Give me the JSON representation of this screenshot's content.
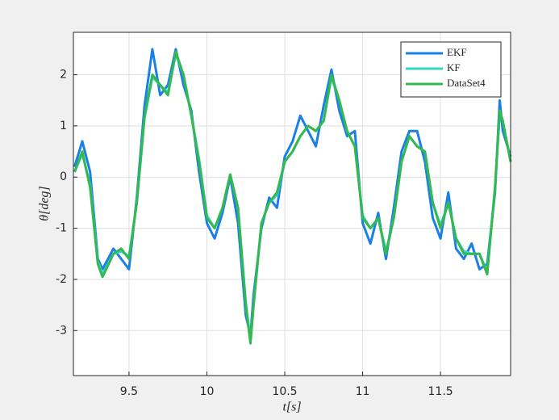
{
  "chart_data": {
    "type": "line",
    "x_label": "t[s]",
    "y_label": "θ[deg]",
    "x": [
      9.15,
      9.2,
      9.25,
      9.3,
      9.33,
      9.4,
      9.45,
      9.5,
      9.55,
      9.6,
      9.65,
      9.7,
      9.75,
      9.8,
      9.85,
      9.9,
      9.95,
      10.0,
      10.05,
      10.1,
      10.15,
      10.2,
      10.25,
      10.28,
      10.3,
      10.35,
      10.4,
      10.45,
      10.5,
      10.55,
      10.6,
      10.65,
      10.7,
      10.75,
      10.8,
      10.85,
      10.9,
      10.95,
      11.0,
      11.05,
      11.1,
      11.15,
      11.2,
      11.25,
      11.3,
      11.35,
      11.4,
      11.45,
      11.5,
      11.55,
      11.6,
      11.65,
      11.7,
      11.75,
      11.8,
      11.85,
      11.88,
      11.9,
      11.95
    ],
    "series": [
      {
        "name": "EKF",
        "color": "#1a7fe6",
        "values": [
          0.2,
          0.7,
          0.1,
          -1.6,
          -1.8,
          -1.4,
          -1.6,
          -1.8,
          -0.4,
          1.4,
          2.5,
          1.6,
          1.8,
          2.5,
          1.8,
          1.3,
          0.1,
          -0.9,
          -1.2,
          -0.7,
          0.0,
          -0.9,
          -2.7,
          -3.1,
          -2.3,
          -1.0,
          -0.4,
          -0.6,
          0.4,
          0.7,
          1.2,
          0.9,
          0.6,
          1.4,
          2.1,
          1.3,
          0.8,
          0.9,
          -0.9,
          -1.3,
          -0.7,
          -1.6,
          -0.6,
          0.5,
          0.9,
          0.9,
          0.3,
          -0.8,
          -1.2,
          -0.3,
          -1.4,
          -1.6,
          -1.3,
          -1.8,
          -1.7,
          -0.3,
          1.5,
          0.9,
          0.4
        ]
      },
      {
        "name": "KF",
        "color": "#33d6c8",
        "values": [
          0.1,
          0.45,
          -0.15,
          -1.65,
          -1.9,
          -1.5,
          -1.45,
          -1.55,
          -0.5,
          1.15,
          1.95,
          1.8,
          1.65,
          2.4,
          2.0,
          1.2,
          0.35,
          -0.75,
          -1.0,
          -0.6,
          0.05,
          -0.6,
          -2.45,
          -3.2,
          -2.5,
          -0.9,
          -0.5,
          -0.35,
          0.3,
          0.5,
          0.8,
          1.0,
          0.9,
          1.1,
          1.95,
          1.5,
          0.9,
          0.6,
          -0.75,
          -1.0,
          -0.8,
          -1.45,
          -0.8,
          0.3,
          0.8,
          0.6,
          0.5,
          -0.5,
          -0.95,
          -0.5,
          -1.2,
          -1.45,
          -1.5,
          -1.5,
          -1.85,
          -0.2,
          1.25,
          1.1,
          0.3
        ]
      },
      {
        "name": "DataSet4",
        "color": "#35b84f",
        "values": [
          0.1,
          0.5,
          -0.2,
          -1.7,
          -1.95,
          -1.5,
          -1.4,
          -1.6,
          -0.5,
          1.2,
          2.0,
          1.8,
          1.6,
          2.45,
          2.0,
          1.2,
          0.3,
          -0.8,
          -1.0,
          -0.6,
          0.05,
          -0.6,
          -2.5,
          -3.25,
          -2.5,
          -0.9,
          -0.5,
          -0.3,
          0.3,
          0.5,
          0.8,
          1.0,
          0.9,
          1.1,
          2.0,
          1.5,
          0.9,
          0.6,
          -0.8,
          -1.0,
          -0.8,
          -1.5,
          -0.8,
          0.3,
          0.8,
          0.6,
          0.5,
          -0.5,
          -1.0,
          -0.5,
          -1.2,
          -1.5,
          -1.5,
          -1.5,
          -1.9,
          -0.2,
          1.3,
          1.1,
          0.3
        ]
      }
    ],
    "xlim": [
      9.143,
      11.95
    ],
    "ylim": [
      -3.88,
      2.83
    ],
    "xticks": [
      9.5,
      10,
      10.5,
      11,
      11.5
    ],
    "yticks": [
      -3,
      -2,
      -1,
      0,
      1,
      2
    ],
    "grid": true,
    "legend": "northeast"
  }
}
